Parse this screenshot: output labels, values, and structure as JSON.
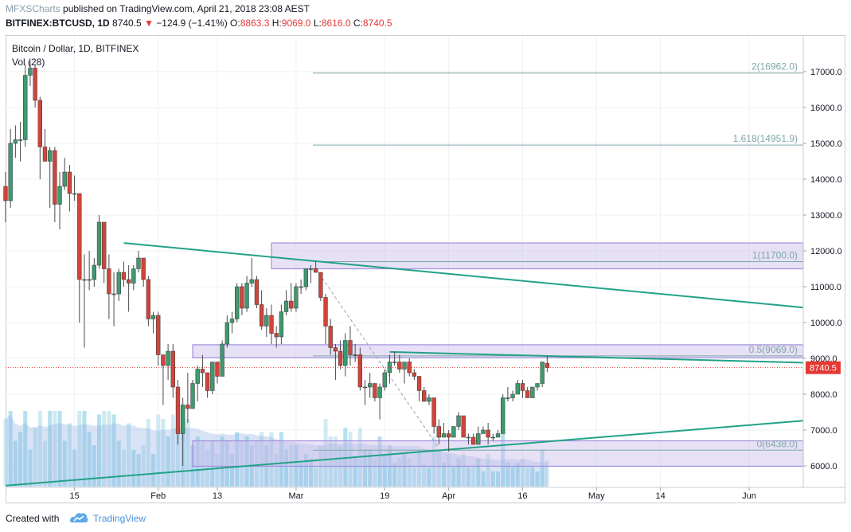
{
  "header": {
    "author": "MFXSCharts",
    "published_text": "published on TradingView.com, April 21, 2018 23:08 AEST",
    "symbol": "BITFINEX:BTCUSD, 1D",
    "last": "8740.5",
    "change": "−124.9 (−1.41%)",
    "o_label": "O:",
    "o_value": "8863.3",
    "h_label": "H:",
    "h_value": "9069.0",
    "l_label": "L:",
    "l_value": "8616.0",
    "c_label": "C:",
    "c_value": "8740.5"
  },
  "pane": {
    "title": "Bitcoin / Dollar, 1D, BITFINEX",
    "volume_label": "Vol (28)"
  },
  "footer": {
    "created_with": "Created with",
    "brand": "TradingView"
  },
  "chart_data": {
    "type": "candlestick",
    "title": "Bitcoin / Dollar, 1D, BITFINEX",
    "x_tick_labels": [
      "15",
      "Feb",
      "13",
      "Mar",
      "19",
      "Apr",
      "16",
      "May",
      "14",
      "Jun"
    ],
    "x_ticks": [
      "2018-01-15",
      "2018-02-01",
      "2018-02-13",
      "2018-03-01",
      "2018-03-19",
      "2018-04-01",
      "2018-04-16",
      "2018-05-01",
      "2018-05-14",
      "2018-06-01"
    ],
    "x_range": [
      "2018-01-01",
      "2018-06-12"
    ],
    "y_tick_labels": [
      "6000.0",
      "7000.0",
      "8000.0",
      "9000.0",
      "10000.0",
      "11000.0",
      "12000.0",
      "13000.0",
      "14000.0",
      "15000.0",
      "16000.0",
      "17000.0"
    ],
    "y_ticks": [
      6000,
      7000,
      8000,
      9000,
      10000,
      11000,
      12000,
      13000,
      14000,
      15000,
      16000,
      17000
    ],
    "ylim": [
      5400,
      18000
    ],
    "last_price": 8740.5,
    "last_price_label": "8740.5",
    "colors": {
      "up": "#3e9a6f",
      "down": "#d0453b",
      "volume": "#9fd8e8",
      "volume_ma": "#8fb2e4",
      "fib": "#7fa6a6",
      "zone_fill": "#c9bde8",
      "zone_stroke": "#a38ee0",
      "trendline": "#22a288",
      "last_price": "#e53935"
    },
    "fib_levels": [
      {
        "label": "2(16962.0)",
        "price": 16962
      },
      {
        "label": "1.618(14951.9)",
        "price": 14951.9
      },
      {
        "label": "1(11700.0)",
        "price": 11700
      },
      {
        "label": "0.5(9069.0)",
        "price": 9069
      },
      {
        "label": "0(6438.0)",
        "price": 6438
      }
    ],
    "zones": [
      {
        "from_date": "2018-02-24",
        "to_date": "2018-06-12",
        "low": 11500,
        "high": 12220
      },
      {
        "from_date": "2018-02-08",
        "to_date": "2018-06-12",
        "low": 9020,
        "high": 9380
      },
      {
        "from_date": "2018-02-08",
        "to_date": "2018-06-12",
        "low": 5990,
        "high": 6700
      }
    ],
    "trendlines": [
      {
        "x1": "2018-01-25",
        "y1": 12220,
        "x2": "2018-06-12",
        "y2": 10420
      },
      {
        "x1": "2018-03-20",
        "y1": 9180,
        "x2": "2018-06-12",
        "y2": 8880
      },
      {
        "x1": "2018-01-01",
        "y1": 5450,
        "x2": "2018-06-12",
        "y2": 7260
      }
    ],
    "dashed_lines": [
      {
        "x1": "2018-03-05",
        "y1": 11500,
        "x2": "2018-03-30",
        "y2": 6500
      }
    ],
    "candles": [
      {
        "d": "2018-01-01",
        "o": 13800,
        "h": 14200,
        "l": 12800,
        "c": 13400
      },
      {
        "d": "2018-01-02",
        "o": 13400,
        "h": 15400,
        "l": 13200,
        "c": 15000
      },
      {
        "d": "2018-01-03",
        "o": 15000,
        "h": 15500,
        "l": 14600,
        "c": 15100
      },
      {
        "d": "2018-01-04",
        "o": 15100,
        "h": 15600,
        "l": 14500,
        "c": 15100
      },
      {
        "d": "2018-01-05",
        "o": 15100,
        "h": 17200,
        "l": 14900,
        "c": 16900
      },
      {
        "d": "2018-01-06",
        "o": 16900,
        "h": 17300,
        "l": 16600,
        "c": 17100
      },
      {
        "d": "2018-01-07",
        "o": 17100,
        "h": 17200,
        "l": 16000,
        "c": 16200
      },
      {
        "d": "2018-01-08",
        "o": 16200,
        "h": 16300,
        "l": 14000,
        "c": 14900
      },
      {
        "d": "2018-01-09",
        "o": 14900,
        "h": 15400,
        "l": 14500,
        "c": 14500
      },
      {
        "d": "2018-01-10",
        "o": 14500,
        "h": 14900,
        "l": 13200,
        "c": 14800
      },
      {
        "d": "2018-01-11",
        "o": 14800,
        "h": 14900,
        "l": 12800,
        "c": 13300
      },
      {
        "d": "2018-01-12",
        "o": 13300,
        "h": 14200,
        "l": 12600,
        "c": 13800
      },
      {
        "d": "2018-01-13",
        "o": 13800,
        "h": 14600,
        "l": 13700,
        "c": 14200
      },
      {
        "d": "2018-01-14",
        "o": 14200,
        "h": 14400,
        "l": 13100,
        "c": 13600
      },
      {
        "d": "2018-01-15",
        "o": 13600,
        "h": 14100,
        "l": 13400,
        "c": 13600
      },
      {
        "d": "2018-01-16",
        "o": 13600,
        "h": 13600,
        "l": 10000,
        "c": 11200
      },
      {
        "d": "2018-01-17",
        "o": 11200,
        "h": 11900,
        "l": 9300,
        "c": 11200
      },
      {
        "d": "2018-01-18",
        "o": 11200,
        "h": 12000,
        "l": 10900,
        "c": 11200
      },
      {
        "d": "2018-01-19",
        "o": 11200,
        "h": 11800,
        "l": 11000,
        "c": 11600
      },
      {
        "d": "2018-01-20",
        "o": 11600,
        "h": 13000,
        "l": 11500,
        "c": 12800
      },
      {
        "d": "2018-01-21",
        "o": 12800,
        "h": 12800,
        "l": 11100,
        "c": 11500
      },
      {
        "d": "2018-01-22",
        "o": 11500,
        "h": 11900,
        "l": 10100,
        "c": 10800
      },
      {
        "d": "2018-01-23",
        "o": 10800,
        "h": 11400,
        "l": 9900,
        "c": 10800
      },
      {
        "d": "2018-01-24",
        "o": 10800,
        "h": 11500,
        "l": 10600,
        "c": 11400
      },
      {
        "d": "2018-01-25",
        "o": 11400,
        "h": 11700,
        "l": 11000,
        "c": 11200
      },
      {
        "d": "2018-01-26",
        "o": 11200,
        "h": 11600,
        "l": 10300,
        "c": 11100
      },
      {
        "d": "2018-01-27",
        "o": 11100,
        "h": 11600,
        "l": 10900,
        "c": 11500
      },
      {
        "d": "2018-01-28",
        "o": 11500,
        "h": 12000,
        "l": 11400,
        "c": 11800
      },
      {
        "d": "2018-01-29",
        "o": 11800,
        "h": 11800,
        "l": 11000,
        "c": 11200
      },
      {
        "d": "2018-01-30",
        "o": 11200,
        "h": 11300,
        "l": 9900,
        "c": 10100
      },
      {
        "d": "2018-01-31",
        "o": 10100,
        "h": 10300,
        "l": 9700,
        "c": 10200
      },
      {
        "d": "2018-02-01",
        "o": 10200,
        "h": 10300,
        "l": 8800,
        "c": 9100
      },
      {
        "d": "2018-02-02",
        "o": 9100,
        "h": 9100,
        "l": 7700,
        "c": 8800
      },
      {
        "d": "2018-02-03",
        "o": 8800,
        "h": 9400,
        "l": 8400,
        "c": 9200
      },
      {
        "d": "2018-02-04",
        "o": 9200,
        "h": 9400,
        "l": 7900,
        "c": 8200
      },
      {
        "d": "2018-02-05",
        "o": 8200,
        "h": 8400,
        "l": 6600,
        "c": 6900
      },
      {
        "d": "2018-02-06",
        "o": 6900,
        "h": 7900,
        "l": 6000,
        "c": 7700
      },
      {
        "d": "2018-02-07",
        "o": 7700,
        "h": 8600,
        "l": 7200,
        "c": 7600
      },
      {
        "d": "2018-02-08",
        "o": 7600,
        "h": 8400,
        "l": 7600,
        "c": 8300
      },
      {
        "d": "2018-02-09",
        "o": 8300,
        "h": 8800,
        "l": 7800,
        "c": 8700
      },
      {
        "d": "2018-02-10",
        "o": 8700,
        "h": 9100,
        "l": 8200,
        "c": 8600
      },
      {
        "d": "2018-02-11",
        "o": 8600,
        "h": 8600,
        "l": 7900,
        "c": 8100
      },
      {
        "d": "2018-02-12",
        "o": 8100,
        "h": 8900,
        "l": 8000,
        "c": 8900
      },
      {
        "d": "2018-02-13",
        "o": 8900,
        "h": 8900,
        "l": 8300,
        "c": 8500
      },
      {
        "d": "2018-02-14",
        "o": 8500,
        "h": 9500,
        "l": 8500,
        "c": 9400
      },
      {
        "d": "2018-02-15",
        "o": 9400,
        "h": 10200,
        "l": 9300,
        "c": 10000
      },
      {
        "d": "2018-02-16",
        "o": 10000,
        "h": 10300,
        "l": 9700,
        "c": 10100
      },
      {
        "d": "2018-02-17",
        "o": 10100,
        "h": 11100,
        "l": 10000,
        "c": 11000
      },
      {
        "d": "2018-02-18",
        "o": 11000,
        "h": 11100,
        "l": 10200,
        "c": 10400
      },
      {
        "d": "2018-02-19",
        "o": 10400,
        "h": 11300,
        "l": 10300,
        "c": 11100
      },
      {
        "d": "2018-02-20",
        "o": 11100,
        "h": 11800,
        "l": 11000,
        "c": 11200
      },
      {
        "d": "2018-02-21",
        "o": 11200,
        "h": 11300,
        "l": 10400,
        "c": 10500
      },
      {
        "d": "2018-02-22",
        "o": 10500,
        "h": 10900,
        "l": 9800,
        "c": 9900
      },
      {
        "d": "2018-02-23",
        "o": 9900,
        "h": 10400,
        "l": 9600,
        "c": 10200
      },
      {
        "d": "2018-02-24",
        "o": 10200,
        "h": 10500,
        "l": 9400,
        "c": 9700
      },
      {
        "d": "2018-02-25",
        "o": 9700,
        "h": 9900,
        "l": 9300,
        "c": 9600
      },
      {
        "d": "2018-02-26",
        "o": 9600,
        "h": 10500,
        "l": 9400,
        "c": 10300
      },
      {
        "d": "2018-02-27",
        "o": 10300,
        "h": 10900,
        "l": 10200,
        "c": 10600
      },
      {
        "d": "2018-02-28",
        "o": 10600,
        "h": 11100,
        "l": 10300,
        "c": 10400
      },
      {
        "d": "2018-03-01",
        "o": 10400,
        "h": 11100,
        "l": 10300,
        "c": 11000
      },
      {
        "d": "2018-03-02",
        "o": 11000,
        "h": 11200,
        "l": 10800,
        "c": 11000
      },
      {
        "d": "2018-03-03",
        "o": 11000,
        "h": 11500,
        "l": 10900,
        "c": 11500
      },
      {
        "d": "2018-03-04",
        "o": 11500,
        "h": 11600,
        "l": 11100,
        "c": 11500
      },
      {
        "d": "2018-03-05",
        "o": 11500,
        "h": 11700,
        "l": 11400,
        "c": 11400
      },
      {
        "d": "2018-03-06",
        "o": 11400,
        "h": 11400,
        "l": 10600,
        "c": 10700
      },
      {
        "d": "2018-03-07",
        "o": 10700,
        "h": 10800,
        "l": 9400,
        "c": 9900
      },
      {
        "d": "2018-03-08",
        "o": 9900,
        "h": 10100,
        "l": 9100,
        "c": 9300
      },
      {
        "d": "2018-03-09",
        "o": 9300,
        "h": 9400,
        "l": 8400,
        "c": 9200
      },
      {
        "d": "2018-03-10",
        "o": 9200,
        "h": 9500,
        "l": 8700,
        "c": 8800
      },
      {
        "d": "2018-03-11",
        "o": 8800,
        "h": 9700,
        "l": 8500,
        "c": 9500
      },
      {
        "d": "2018-03-12",
        "o": 9500,
        "h": 9900,
        "l": 8800,
        "c": 9100
      },
      {
        "d": "2018-03-13",
        "o": 9100,
        "h": 9400,
        "l": 8900,
        "c": 9100
      },
      {
        "d": "2018-03-14",
        "o": 9100,
        "h": 9300,
        "l": 8100,
        "c": 8200
      },
      {
        "d": "2018-03-15",
        "o": 8200,
        "h": 8400,
        "l": 7700,
        "c": 8200
      },
      {
        "d": "2018-03-16",
        "o": 8200,
        "h": 8600,
        "l": 7900,
        "c": 8300
      },
      {
        "d": "2018-03-17",
        "o": 8300,
        "h": 8300,
        "l": 7800,
        "c": 7900
      },
      {
        "d": "2018-03-18",
        "o": 7900,
        "h": 8300,
        "l": 7300,
        "c": 8200
      },
      {
        "d": "2018-03-19",
        "o": 8200,
        "h": 8700,
        "l": 8100,
        "c": 8600
      },
      {
        "d": "2018-03-20",
        "o": 8600,
        "h": 9100,
        "l": 8300,
        "c": 8900
      },
      {
        "d": "2018-03-21",
        "o": 8900,
        "h": 9200,
        "l": 8800,
        "c": 8900
      },
      {
        "d": "2018-03-22",
        "o": 8900,
        "h": 9100,
        "l": 8600,
        "c": 8700
      },
      {
        "d": "2018-03-23",
        "o": 8700,
        "h": 8900,
        "l": 8300,
        "c": 8900
      },
      {
        "d": "2018-03-24",
        "o": 8900,
        "h": 9000,
        "l": 8500,
        "c": 8600
      },
      {
        "d": "2018-03-25",
        "o": 8600,
        "h": 8700,
        "l": 8400,
        "c": 8500
      },
      {
        "d": "2018-03-26",
        "o": 8500,
        "h": 8500,
        "l": 7800,
        "c": 8100
      },
      {
        "d": "2018-03-27",
        "o": 8100,
        "h": 8200,
        "l": 7800,
        "c": 7800
      },
      {
        "d": "2018-03-28",
        "o": 7800,
        "h": 8000,
        "l": 7700,
        "c": 7900
      },
      {
        "d": "2018-03-29",
        "o": 7900,
        "h": 7900,
        "l": 6900,
        "c": 7100
      },
      {
        "d": "2018-03-30",
        "o": 7100,
        "h": 7300,
        "l": 6600,
        "c": 6800
      },
      {
        "d": "2018-03-31",
        "o": 6800,
        "h": 7200,
        "l": 6800,
        "c": 6900
      },
      {
        "d": "2018-04-01",
        "o": 6900,
        "h": 7000,
        "l": 6400,
        "c": 6800
      },
      {
        "d": "2018-04-02",
        "o": 6800,
        "h": 7100,
        "l": 6800,
        "c": 7100
      },
      {
        "d": "2018-04-03",
        "o": 7100,
        "h": 7500,
        "l": 7000,
        "c": 7400
      },
      {
        "d": "2018-04-04",
        "o": 7400,
        "h": 7400,
        "l": 6800,
        "c": 6800
      },
      {
        "d": "2018-04-05",
        "o": 6800,
        "h": 6900,
        "l": 6600,
        "c": 6800
      },
      {
        "d": "2018-04-06",
        "o": 6800,
        "h": 6900,
        "l": 6600,
        "c": 6600
      },
      {
        "d": "2018-04-07",
        "o": 6600,
        "h": 7100,
        "l": 6600,
        "c": 6900
      },
      {
        "d": "2018-04-08",
        "o": 6900,
        "h": 7100,
        "l": 6900,
        "c": 7000
      },
      {
        "d": "2018-04-09",
        "o": 7000,
        "h": 7200,
        "l": 6600,
        "c": 6800
      },
      {
        "d": "2018-04-10",
        "o": 6800,
        "h": 6900,
        "l": 6700,
        "c": 6800
      },
      {
        "d": "2018-04-11",
        "o": 6800,
        "h": 7000,
        "l": 6800,
        "c": 6900
      },
      {
        "d": "2018-04-12",
        "o": 6900,
        "h": 8000,
        "l": 6900,
        "c": 7900
      },
      {
        "d": "2018-04-13",
        "o": 7900,
        "h": 8200,
        "l": 7800,
        "c": 7900
      },
      {
        "d": "2018-04-14",
        "o": 7900,
        "h": 8100,
        "l": 7800,
        "c": 8000
      },
      {
        "d": "2018-04-15",
        "o": 8000,
        "h": 8400,
        "l": 8000,
        "c": 8300
      },
      {
        "d": "2018-04-16",
        "o": 8300,
        "h": 8400,
        "l": 7900,
        "c": 8100
      },
      {
        "d": "2018-04-17",
        "o": 8100,
        "h": 8200,
        "l": 7900,
        "c": 7900
      },
      {
        "d": "2018-04-18",
        "o": 7900,
        "h": 8200,
        "l": 7900,
        "c": 8200
      },
      {
        "d": "2018-04-19",
        "o": 8200,
        "h": 8300,
        "l": 8100,
        "c": 8300
      },
      {
        "d": "2018-04-20",
        "o": 8300,
        "h": 8900,
        "l": 8200,
        "c": 8900
      },
      {
        "d": "2018-04-21",
        "o": 8863.3,
        "h": 9069,
        "l": 8616,
        "c": 8740.5
      }
    ]
  }
}
